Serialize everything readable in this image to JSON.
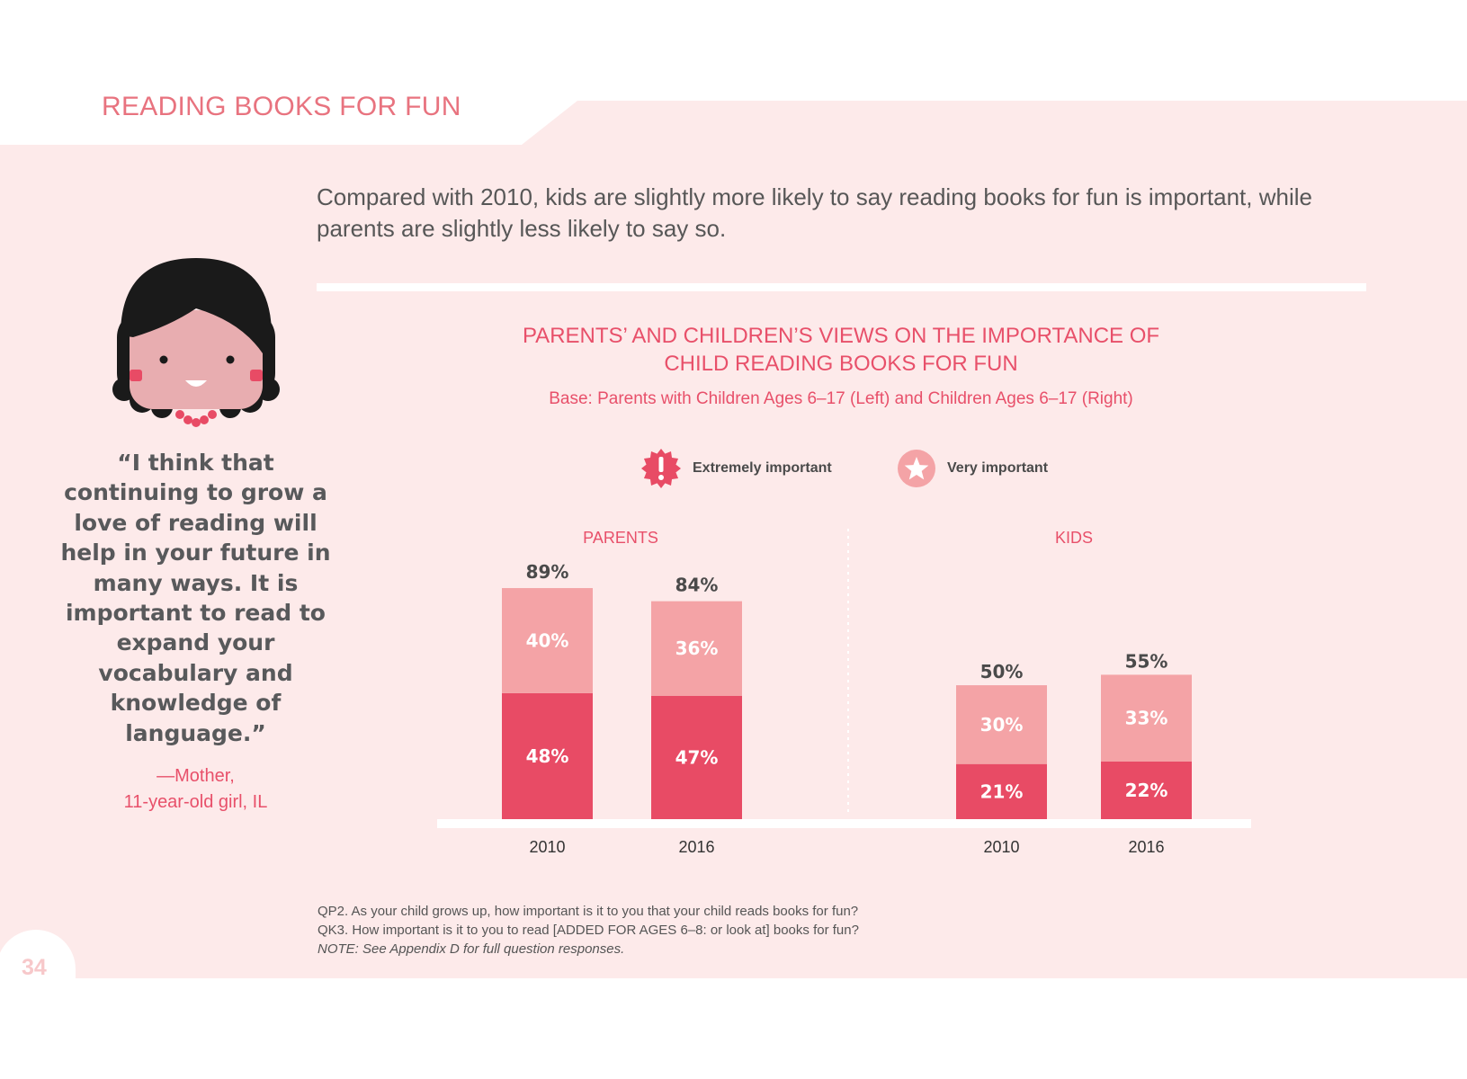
{
  "section_title": "READING BOOKS FOR FUN",
  "headline": "Compared with 2010, kids are slightly more likely to say reading books for fun is important, while parents are slightly less likely to say so.",
  "page_number": "34",
  "quote": {
    "text": "“I think that continuing to grow a love of reading will help in your future in many ways. It is important to read to expand your vocabulary and knowledge of language.”",
    "attribution_line1": "—Mother,",
    "attribution_line2": "11-year-old girl, IL"
  },
  "footnotes": {
    "q1": "QP2. As your child grows up, how important is it to you that your child reads books for fun?",
    "q2": "QK3. How important is it to you to read [ADDED FOR AGES 6–8: or look at] books for fun?",
    "note": "NOTE: See Appendix D for full question responses."
  },
  "colors": {
    "background": "#fdeaea",
    "accent": "#e8506a",
    "extremely_important": "#e84b65",
    "very_important": "#f4a3a6",
    "text_dark": "#4a4a4a"
  },
  "chart_data": {
    "type": "bar",
    "stacked": true,
    "title_line1": "PARENTS’ AND CHILDREN’S VIEWS ON THE IMPORTANCE OF",
    "title_line2": "CHILD READING BOOKS FOR FUN",
    "subtitle": "Base: Parents with Children Ages 6–17 (Left) and Children Ages 6–17 (Right)",
    "legend": [
      {
        "name": "Extremely important",
        "icon": "exclamation-burst-icon",
        "color": "#e84b65"
      },
      {
        "name": "Very important",
        "icon": "star-circle-icon",
        "color": "#f4a3a6"
      }
    ],
    "groups": [
      {
        "label": "PARENTS",
        "categories": [
          "2010",
          "2016"
        ],
        "series": [
          {
            "name": "Extremely important",
            "values": [
              48,
              47
            ],
            "labels": [
              "48%",
              "47%"
            ]
          },
          {
            "name": "Very important",
            "values": [
              40,
              36
            ],
            "labels": [
              "40%",
              "36%"
            ]
          }
        ],
        "totals": [
          89,
          84
        ],
        "total_labels": [
          "89%",
          "84%"
        ]
      },
      {
        "label": "KIDS",
        "categories": [
          "2010",
          "2016"
        ],
        "series": [
          {
            "name": "Extremely important",
            "values": [
              21,
              22
            ],
            "labels": [
              "21%",
              "22%"
            ]
          },
          {
            "name": "Very important",
            "values": [
              30,
              33
            ],
            "labels": [
              "30%",
              "33%"
            ]
          }
        ],
        "totals": [
          50,
          55
        ],
        "total_labels": [
          "50%",
          "55%"
        ]
      }
    ],
    "ylim": [
      0,
      100
    ],
    "grid": false
  }
}
